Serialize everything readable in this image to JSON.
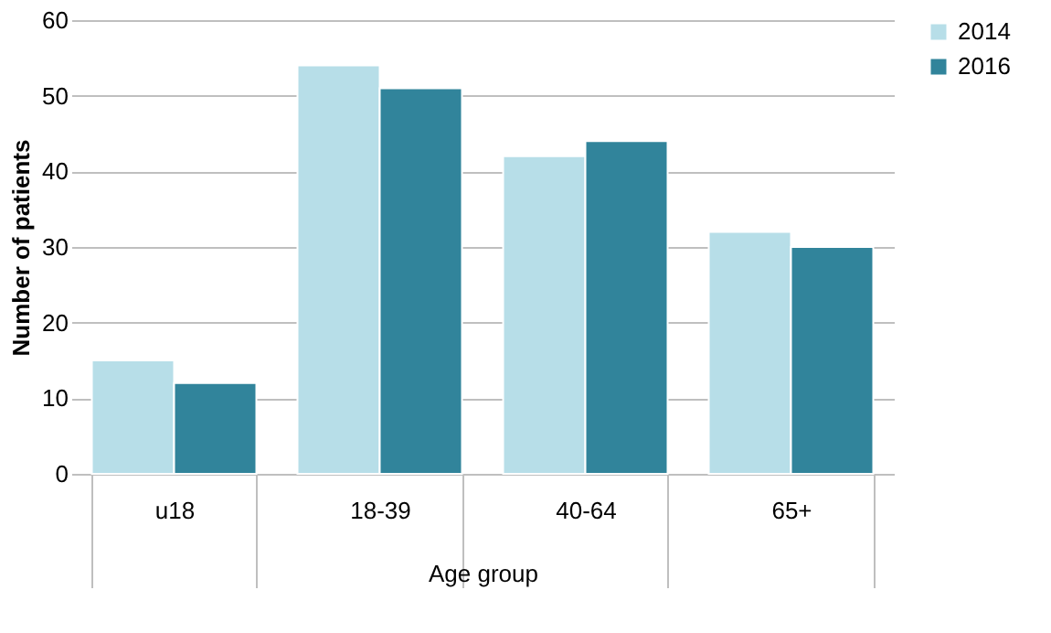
{
  "chart_data": {
    "type": "bar",
    "xlabel": "Age group",
    "ylabel": "Number of patients",
    "categories": [
      "u18",
      "18-39",
      "40-64",
      "65+"
    ],
    "series": [
      {
        "name": "2014",
        "color": "#b7dee8",
        "values": [
          15,
          54,
          42,
          32
        ]
      },
      {
        "name": "2016",
        "color": "#31849b",
        "values": [
          12,
          51,
          44,
          30
        ]
      }
    ],
    "ylim": [
      0,
      60
    ],
    "yticks": [
      0,
      10,
      20,
      30,
      40,
      50,
      60
    ],
    "grid": "y",
    "legend": "right"
  }
}
